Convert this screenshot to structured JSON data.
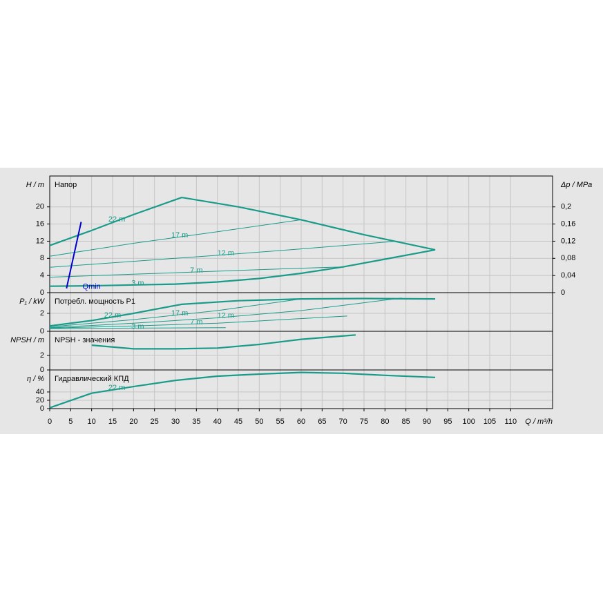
{
  "chart_data": [
    {
      "type": "line",
      "title": "Напор",
      "ylabel": "H / m",
      "y2label": "Δp / MPa",
      "xlim": [
        0,
        120
      ],
      "ylim": [
        0,
        27.2
      ],
      "yticks": [
        0,
        4,
        8,
        12,
        16,
        20
      ],
      "y2lim": [
        0,
        0.272
      ],
      "y2ticks": [
        0,
        {
          "value": 0.04,
          "label": "0,04"
        },
        {
          "value": 0.08,
          "label": "0,08"
        },
        {
          "value": 0.12,
          "label": "0,12"
        },
        {
          "value": 0.16,
          "label": "0,16"
        },
        {
          "value": 0.2,
          "label": "0,2"
        }
      ],
      "grid": true,
      "series": [
        {
          "name": "22 m",
          "color": "#1a9b8a",
          "x": [
            0,
            10,
            20,
            31.5,
            45,
            60,
            75,
            92
          ],
          "values": [
            11,
            14.5,
            18.2,
            22.2,
            20,
            17,
            13.5,
            10
          ]
        },
        {
          "name": "17 m",
          "color": "#1a9b8a",
          "x": [
            0,
            20,
            40,
            60
          ],
          "values": [
            8.5,
            11.5,
            14.2,
            17
          ]
        },
        {
          "name": "12 m",
          "color": "#1a9b8a",
          "x": [
            0,
            20,
            40,
            60,
            83
          ],
          "values": [
            5.9,
            7.3,
            8.7,
            10.2,
            12
          ]
        },
        {
          "name": "7 m",
          "color": "#1a9b8a",
          "x": [
            0,
            20,
            40,
            60,
            70
          ],
          "values": [
            3.6,
            4.3,
            5,
            5.7,
            6
          ]
        },
        {
          "name": "3 m",
          "color": "#1a9b8a",
          "x": [
            0,
            10,
            20,
            30,
            40,
            50,
            60,
            70,
            80,
            92
          ],
          "values": [
            1.5,
            1.6,
            1.8,
            2,
            2.5,
            3.3,
            4.5,
            6,
            7.8,
            10
          ]
        },
        {
          "name": "Qmin",
          "color": "#0000cc",
          "x": [
            4,
            7.5
          ],
          "values": [
            1,
            16.5
          ]
        }
      ]
    },
    {
      "type": "line",
      "title": "Потребл. мощность P1",
      "ylabel": "P₁ / kW",
      "xlim": [
        0,
        120
      ],
      "ylim": [
        0,
        4.3
      ],
      "yticks": [
        0,
        2
      ],
      "grid": true,
      "series": [
        {
          "name": "22 m",
          "color": "#1a9b8a",
          "x": [
            0,
            10,
            20,
            31.5,
            45,
            60,
            75,
            92
          ],
          "values": [
            0.6,
            1.2,
            2.0,
            3.0,
            3.4,
            3.6,
            3.65,
            3.6
          ]
        },
        {
          "name": "17 m",
          "color": "#1a9b8a",
          "x": [
            0,
            20,
            40,
            60
          ],
          "values": [
            0.5,
            1.3,
            2.3,
            3.6
          ]
        },
        {
          "name": "12 m",
          "color": "#1a9b8a",
          "x": [
            0,
            20,
            40,
            60,
            84
          ],
          "values": [
            0.4,
            0.9,
            1.5,
            2.3,
            3.7
          ]
        },
        {
          "name": "7 m",
          "color": "#1a9b8a",
          "x": [
            0,
            20,
            40,
            71
          ],
          "values": [
            0.35,
            0.6,
            0.9,
            1.7
          ]
        },
        {
          "name": "3 m",
          "color": "#1a9b8a",
          "x": [
            0,
            20,
            42
          ],
          "values": [
            0.3,
            0.35,
            0.4
          ]
        }
      ]
    },
    {
      "type": "line",
      "title": "NPSH - значения",
      "ylabel": "NPSH / m",
      "xlim": [
        0,
        120
      ],
      "ylim": [
        0,
        5.3
      ],
      "yticks": [
        0,
        2
      ],
      "grid": true,
      "series": [
        {
          "color": "#1a9b8a",
          "x": [
            10,
            20,
            30,
            40,
            50,
            60,
            73
          ],
          "values": [
            3.4,
            2.9,
            2.9,
            3.0,
            3.5,
            4.2,
            4.8
          ]
        }
      ]
    },
    {
      "type": "line",
      "title": "Гидравлический КПД",
      "ylabel": "η / %",
      "xlabel": "Q / m³/h",
      "xlim": [
        0,
        120
      ],
      "xticks": [
        0,
        5,
        10,
        15,
        20,
        25,
        30,
        35,
        40,
        45,
        50,
        55,
        60,
        65,
        70,
        75,
        80,
        85,
        90,
        95,
        100,
        105,
        110
      ],
      "ylim": [
        0,
        93
      ],
      "yticks": [
        0,
        20,
        40
      ],
      "grid": true,
      "series": [
        {
          "name": "22 m",
          "color": "#1a9b8a",
          "x": [
            0,
            10,
            20,
            30,
            40,
            50,
            60,
            70,
            80,
            92
          ],
          "values": [
            2,
            37,
            53,
            68,
            78,
            83,
            87,
            85,
            80,
            75
          ]
        }
      ]
    }
  ]
}
